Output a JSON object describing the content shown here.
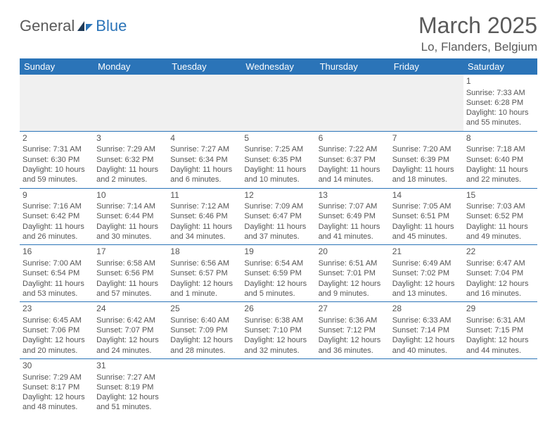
{
  "logo": {
    "text1": "General",
    "text2": "Blue"
  },
  "title": "March 2025",
  "location": "Lo, Flanders, Belgium",
  "colors": {
    "header_bg": "#2b74b8",
    "header_text": "#ffffff",
    "body_text": "#555555",
    "blank_bg": "#f0f0f0",
    "rule": "#2b74b8"
  },
  "daysOfWeek": [
    "Sunday",
    "Monday",
    "Tuesday",
    "Wednesday",
    "Thursday",
    "Friday",
    "Saturday"
  ],
  "weeks": [
    [
      null,
      null,
      null,
      null,
      null,
      null,
      {
        "n": "1",
        "sunrise": "Sunrise: 7:33 AM",
        "sunset": "Sunset: 6:28 PM",
        "day": "Daylight: 10 hours and 55 minutes."
      }
    ],
    [
      {
        "n": "2",
        "sunrise": "Sunrise: 7:31 AM",
        "sunset": "Sunset: 6:30 PM",
        "day": "Daylight: 10 hours and 59 minutes."
      },
      {
        "n": "3",
        "sunrise": "Sunrise: 7:29 AM",
        "sunset": "Sunset: 6:32 PM",
        "day": "Daylight: 11 hours and 2 minutes."
      },
      {
        "n": "4",
        "sunrise": "Sunrise: 7:27 AM",
        "sunset": "Sunset: 6:34 PM",
        "day": "Daylight: 11 hours and 6 minutes."
      },
      {
        "n": "5",
        "sunrise": "Sunrise: 7:25 AM",
        "sunset": "Sunset: 6:35 PM",
        "day": "Daylight: 11 hours and 10 minutes."
      },
      {
        "n": "6",
        "sunrise": "Sunrise: 7:22 AM",
        "sunset": "Sunset: 6:37 PM",
        "day": "Daylight: 11 hours and 14 minutes."
      },
      {
        "n": "7",
        "sunrise": "Sunrise: 7:20 AM",
        "sunset": "Sunset: 6:39 PM",
        "day": "Daylight: 11 hours and 18 minutes."
      },
      {
        "n": "8",
        "sunrise": "Sunrise: 7:18 AM",
        "sunset": "Sunset: 6:40 PM",
        "day": "Daylight: 11 hours and 22 minutes."
      }
    ],
    [
      {
        "n": "9",
        "sunrise": "Sunrise: 7:16 AM",
        "sunset": "Sunset: 6:42 PM",
        "day": "Daylight: 11 hours and 26 minutes."
      },
      {
        "n": "10",
        "sunrise": "Sunrise: 7:14 AM",
        "sunset": "Sunset: 6:44 PM",
        "day": "Daylight: 11 hours and 30 minutes."
      },
      {
        "n": "11",
        "sunrise": "Sunrise: 7:12 AM",
        "sunset": "Sunset: 6:46 PM",
        "day": "Daylight: 11 hours and 34 minutes."
      },
      {
        "n": "12",
        "sunrise": "Sunrise: 7:09 AM",
        "sunset": "Sunset: 6:47 PM",
        "day": "Daylight: 11 hours and 37 minutes."
      },
      {
        "n": "13",
        "sunrise": "Sunrise: 7:07 AM",
        "sunset": "Sunset: 6:49 PM",
        "day": "Daylight: 11 hours and 41 minutes."
      },
      {
        "n": "14",
        "sunrise": "Sunrise: 7:05 AM",
        "sunset": "Sunset: 6:51 PM",
        "day": "Daylight: 11 hours and 45 minutes."
      },
      {
        "n": "15",
        "sunrise": "Sunrise: 7:03 AM",
        "sunset": "Sunset: 6:52 PM",
        "day": "Daylight: 11 hours and 49 minutes."
      }
    ],
    [
      {
        "n": "16",
        "sunrise": "Sunrise: 7:00 AM",
        "sunset": "Sunset: 6:54 PM",
        "day": "Daylight: 11 hours and 53 minutes."
      },
      {
        "n": "17",
        "sunrise": "Sunrise: 6:58 AM",
        "sunset": "Sunset: 6:56 PM",
        "day": "Daylight: 11 hours and 57 minutes."
      },
      {
        "n": "18",
        "sunrise": "Sunrise: 6:56 AM",
        "sunset": "Sunset: 6:57 PM",
        "day": "Daylight: 12 hours and 1 minute."
      },
      {
        "n": "19",
        "sunrise": "Sunrise: 6:54 AM",
        "sunset": "Sunset: 6:59 PM",
        "day": "Daylight: 12 hours and 5 minutes."
      },
      {
        "n": "20",
        "sunrise": "Sunrise: 6:51 AM",
        "sunset": "Sunset: 7:01 PM",
        "day": "Daylight: 12 hours and 9 minutes."
      },
      {
        "n": "21",
        "sunrise": "Sunrise: 6:49 AM",
        "sunset": "Sunset: 7:02 PM",
        "day": "Daylight: 12 hours and 13 minutes."
      },
      {
        "n": "22",
        "sunrise": "Sunrise: 6:47 AM",
        "sunset": "Sunset: 7:04 PM",
        "day": "Daylight: 12 hours and 16 minutes."
      }
    ],
    [
      {
        "n": "23",
        "sunrise": "Sunrise: 6:45 AM",
        "sunset": "Sunset: 7:06 PM",
        "day": "Daylight: 12 hours and 20 minutes."
      },
      {
        "n": "24",
        "sunrise": "Sunrise: 6:42 AM",
        "sunset": "Sunset: 7:07 PM",
        "day": "Daylight: 12 hours and 24 minutes."
      },
      {
        "n": "25",
        "sunrise": "Sunrise: 6:40 AM",
        "sunset": "Sunset: 7:09 PM",
        "day": "Daylight: 12 hours and 28 minutes."
      },
      {
        "n": "26",
        "sunrise": "Sunrise: 6:38 AM",
        "sunset": "Sunset: 7:10 PM",
        "day": "Daylight: 12 hours and 32 minutes."
      },
      {
        "n": "27",
        "sunrise": "Sunrise: 6:36 AM",
        "sunset": "Sunset: 7:12 PM",
        "day": "Daylight: 12 hours and 36 minutes."
      },
      {
        "n": "28",
        "sunrise": "Sunrise: 6:33 AM",
        "sunset": "Sunset: 7:14 PM",
        "day": "Daylight: 12 hours and 40 minutes."
      },
      {
        "n": "29",
        "sunrise": "Sunrise: 6:31 AM",
        "sunset": "Sunset: 7:15 PM",
        "day": "Daylight: 12 hours and 44 minutes."
      }
    ],
    [
      {
        "n": "30",
        "sunrise": "Sunrise: 7:29 AM",
        "sunset": "Sunset: 8:17 PM",
        "day": "Daylight: 12 hours and 48 minutes."
      },
      {
        "n": "31",
        "sunrise": "Sunrise: 7:27 AM",
        "sunset": "Sunset: 8:19 PM",
        "day": "Daylight: 12 hours and 51 minutes."
      },
      null,
      null,
      null,
      null,
      null
    ]
  ]
}
